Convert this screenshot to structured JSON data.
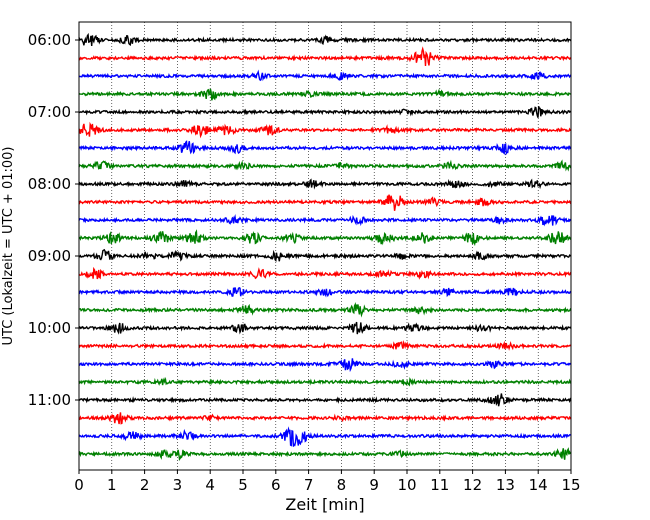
{
  "chart_data": {
    "type": "line",
    "title": "",
    "xlabel": "Zeit  [min]",
    "ylabel": "UTC (Lokalzeit = UTC + 01:00)",
    "xlim": [
      0,
      15
    ],
    "x_ticks": [
      "0",
      "1",
      "2",
      "3",
      "4",
      "5",
      "6",
      "7",
      "8",
      "9",
      "10",
      "11",
      "12",
      "13",
      "14",
      "15"
    ],
    "y_ticks": [
      "06:00",
      "07:00",
      "08:00",
      "09:00",
      "10:00",
      "11:00"
    ],
    "grid": "vertical dotted at each minute",
    "legend": "none",
    "trace_colors": [
      "#000000",
      "#ff0000",
      "#0000ff",
      "#008000"
    ],
    "series": [
      {
        "time": "06:00",
        "color": "#000000",
        "bursts": [
          [
            0.3,
            6
          ],
          [
            1.5,
            4
          ],
          [
            7.5,
            3
          ]
        ]
      },
      {
        "time": "06:15",
        "color": "#ff0000",
        "bursts": [
          [
            10.5,
            9
          ]
        ]
      },
      {
        "time": "06:30",
        "color": "#0000ff",
        "bursts": [
          [
            5.5,
            3
          ],
          [
            8.0,
            3
          ],
          [
            14.0,
            3
          ]
        ]
      },
      {
        "time": "06:45",
        "color": "#008000",
        "bursts": [
          [
            4.0,
            6
          ],
          [
            7.0,
            2
          ],
          [
            11.0,
            2
          ]
        ]
      },
      {
        "time": "07:00",
        "color": "#000000",
        "bursts": [
          [
            10.0,
            2
          ],
          [
            14.0,
            5
          ]
        ]
      },
      {
        "time": "07:15",
        "color": "#ff0000",
        "bursts": [
          [
            0.3,
            7
          ],
          [
            3.7,
            6
          ],
          [
            4.5,
            5
          ],
          [
            5.8,
            5
          ],
          [
            9.5,
            3
          ]
        ]
      },
      {
        "time": "07:30",
        "color": "#0000ff",
        "bursts": [
          [
            3.3,
            6
          ],
          [
            4.8,
            4
          ],
          [
            13.0,
            5
          ]
        ]
      },
      {
        "time": "07:45",
        "color": "#008000",
        "bursts": [
          [
            0.7,
            4
          ],
          [
            5.0,
            3
          ],
          [
            8.0,
            2
          ],
          [
            11.3,
            3
          ],
          [
            14.8,
            4
          ]
        ]
      },
      {
        "time": "08:00",
        "color": "#000000",
        "bursts": [
          [
            3.2,
            4
          ],
          [
            7.1,
            3
          ],
          [
            11.5,
            4
          ],
          [
            12.6,
            3
          ],
          [
            13.9,
            3
          ]
        ]
      },
      {
        "time": "08:15",
        "color": "#ff0000",
        "bursts": [
          [
            9.6,
            8
          ],
          [
            10.8,
            3
          ],
          [
            12.3,
            3
          ]
        ]
      },
      {
        "time": "08:30",
        "color": "#0000ff",
        "bursts": [
          [
            4.7,
            3
          ],
          [
            8.5,
            3
          ],
          [
            12.8,
            3
          ],
          [
            14.3,
            6
          ]
        ]
      },
      {
        "time": "08:45",
        "color": "#008000",
        "bursts": [
          [
            1.0,
            5
          ],
          [
            2.5,
            6
          ],
          [
            3.5,
            6
          ],
          [
            5.3,
            5
          ],
          [
            6.5,
            4
          ],
          [
            9.3,
            6
          ],
          [
            10.5,
            5
          ],
          [
            12.0,
            5
          ],
          [
            14.6,
            6
          ]
        ]
      },
      {
        "time": "09:00",
        "color": "#000000",
        "bursts": [
          [
            0.8,
            5
          ],
          [
            2.1,
            4
          ],
          [
            3.0,
            4
          ],
          [
            6.1,
            4
          ],
          [
            9.8,
            3
          ],
          [
            12.2,
            3
          ]
        ]
      },
      {
        "time": "09:15",
        "color": "#ff0000",
        "bursts": [
          [
            0.5,
            4
          ],
          [
            5.5,
            4
          ],
          [
            9.3,
            3
          ],
          [
            10.5,
            3
          ]
        ]
      },
      {
        "time": "09:30",
        "color": "#0000ff",
        "bursts": [
          [
            4.8,
            4
          ],
          [
            7.5,
            3
          ],
          [
            11.2,
            3
          ],
          [
            13.2,
            3
          ]
        ]
      },
      {
        "time": "09:45",
        "color": "#008000",
        "bursts": [
          [
            5.1,
            4
          ],
          [
            8.5,
            5
          ],
          [
            10.4,
            3
          ]
        ]
      },
      {
        "time": "10:00",
        "color": "#000000",
        "bursts": [
          [
            1.2,
            5
          ],
          [
            4.9,
            4
          ],
          [
            8.5,
            5
          ],
          [
            10.2,
            4
          ],
          [
            12.3,
            3
          ]
        ]
      },
      {
        "time": "10:15",
        "color": "#ff0000",
        "bursts": [
          [
            9.8,
            3
          ],
          [
            13.0,
            3
          ]
        ]
      },
      {
        "time": "10:30",
        "color": "#0000ff",
        "bursts": [
          [
            8.2,
            6
          ],
          [
            9.8,
            3
          ],
          [
            12.7,
            3
          ]
        ]
      },
      {
        "time": "10:45",
        "color": "#008000",
        "bursts": [
          [
            2.5,
            2
          ],
          [
            10.0,
            2
          ]
        ]
      },
      {
        "time": "11:00",
        "color": "#000000",
        "bursts": [
          [
            12.8,
            6
          ]
        ]
      },
      {
        "time": "11:15",
        "color": "#ff0000",
        "bursts": [
          [
            1.2,
            5
          ],
          [
            4.0,
            2
          ],
          [
            8.0,
            2
          ]
        ]
      },
      {
        "time": "11:30",
        "color": "#0000ff",
        "bursts": [
          [
            1.6,
            4
          ],
          [
            3.3,
            4
          ],
          [
            6.6,
            10
          ]
        ]
      },
      {
        "time": "11:45",
        "color": "#008000",
        "bursts": [
          [
            2.5,
            3
          ],
          [
            3.0,
            5
          ],
          [
            9.8,
            2
          ],
          [
            14.8,
            5
          ]
        ]
      }
    ]
  }
}
